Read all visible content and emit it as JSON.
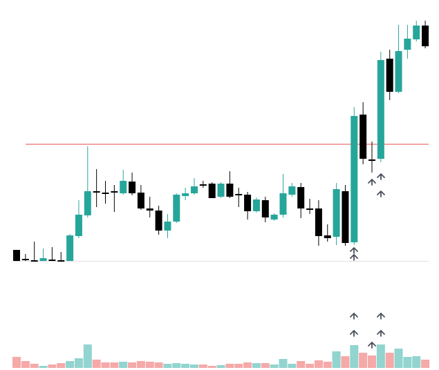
{
  "chart_data": {
    "type": "candlestick",
    "open": [
      16,
      3,
      1,
      0,
      2,
      1,
      0,
      36,
      66,
      101,
      99,
      101,
      98,
      115,
      99,
      76,
      73,
      44,
      57,
      94,
      98,
      111,
      112,
      93,
      112,
      97,
      96,
      72,
      88,
      60,
      67,
      96,
      107,
      76,
      76,
      37,
      35,
      101,
      27,
      212,
      147,
      148,
      293,
      245,
      306,
      321,
      341
    ],
    "high": [
      16,
      10,
      28,
      18,
      20,
      13,
      39,
      88,
      166,
      133,
      116,
      110,
      132,
      128,
      110,
      93,
      80,
      68,
      98,
      106,
      120,
      116,
      114,
      114,
      130,
      106,
      100,
      92,
      93,
      69,
      126,
      113,
      113,
      90,
      88,
      53,
      113,
      110,
      223,
      230,
      173,
      303,
      306,
      342,
      342,
      348,
      348
    ],
    "low": [
      0,
      0,
      0,
      0,
      0,
      0,
      0,
      33,
      63,
      78,
      83,
      71,
      96,
      95,
      74,
      63,
      38,
      33,
      55,
      88,
      96,
      106,
      91,
      91,
      91,
      78,
      60,
      70,
      56,
      58,
      63,
      93,
      62,
      68,
      22,
      28,
      23,
      22,
      23,
      140,
      128,
      143,
      233,
      243,
      293,
      318,
      308
    ],
    "close": [
      0,
      3,
      1,
      4,
      0,
      1,
      37,
      67,
      101,
      101,
      99,
      100,
      116,
      98,
      76,
      73,
      44,
      57,
      96,
      98,
      108,
      111,
      91,
      112,
      93,
      97,
      72,
      89,
      63,
      67,
      98,
      108,
      76,
      74,
      36,
      33,
      104,
      26,
      210,
      148,
      147,
      291,
      245,
      304,
      322,
      341,
      311
    ],
    "volume": [
      16,
      10,
      6,
      3,
      5,
      7,
      10,
      14,
      34,
      12,
      8,
      8,
      9,
      8,
      10,
      9,
      8,
      6,
      7,
      6,
      5,
      5,
      3,
      4,
      6,
      6,
      8,
      7,
      7,
      5,
      13,
      6,
      10,
      6,
      11,
      9,
      24,
      17,
      33,
      22,
      18,
      34,
      22,
      28,
      16,
      17,
      12
    ],
    "up_color": "#26a69a",
    "down_color": "#000000",
    "volume_up_color": "#92d4cf",
    "volume_down_color": "#f5a9a9",
    "ylim": [
      0,
      350
    ],
    "volume_ylim": [
      0,
      40
    ],
    "hline": {
      "value": 169,
      "color": "#ef8585"
    }
  }
}
